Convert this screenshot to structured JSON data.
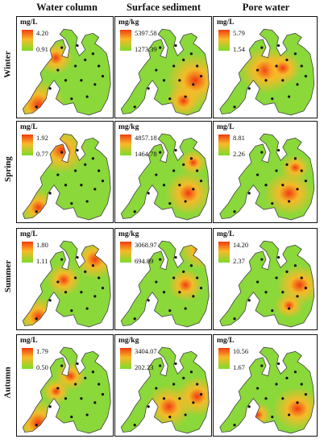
{
  "columns": [
    "Water column",
    "Surface sediment",
    "Pore water"
  ],
  "rows": [
    "Winter",
    "Spring",
    "Summer",
    "Autumn"
  ],
  "colors": {
    "low": "#7cdc2a",
    "mid": "#f9b928",
    "high": "#f23a10",
    "base": "#8ad83a"
  },
  "panels": [
    [
      {
        "unit": "mg/L",
        "max": "4.20",
        "min": "0.91",
        "hotspots": [
          [
            0.22,
            0.86,
            0.28
          ],
          [
            0.4,
            0.4,
            0.18
          ]
        ]
      },
      {
        "unit": "mg/kg",
        "max": "5397.58",
        "min": "1273.39",
        "hotspots": [
          [
            0.82,
            0.62,
            0.3
          ],
          [
            0.7,
            0.82,
            0.18
          ]
        ]
      },
      {
        "unit": "mg/L",
        "max": "5.79",
        "min": "1.54",
        "hotspots": [
          [
            0.5,
            0.52,
            0.26
          ],
          [
            0.66,
            0.5,
            0.18
          ]
        ]
      }
    ],
    [
      {
        "unit": "mg/L",
        "max": "1.92",
        "min": "0.77",
        "hotspots": [
          [
            0.46,
            0.28,
            0.26
          ],
          [
            0.22,
            0.84,
            0.2
          ]
        ]
      },
      {
        "unit": "mg/kg",
        "max": "4857.18",
        "min": "1464.78",
        "hotspots": [
          [
            0.75,
            0.7,
            0.24
          ],
          [
            0.8,
            0.4,
            0.14
          ]
        ]
      },
      {
        "unit": "mg/L",
        "max": "8.81",
        "min": "2.26",
        "hotspots": [
          [
            0.72,
            0.7,
            0.24
          ],
          [
            0.78,
            0.45,
            0.14
          ]
        ]
      }
    ],
    [
      {
        "unit": "mg/L",
        "max": "1.80",
        "min": "1.11",
        "hotspots": [
          [
            0.8,
            0.3,
            0.22
          ],
          [
            0.22,
            0.86,
            0.22
          ],
          [
            0.48,
            0.5,
            0.18
          ]
        ]
      },
      {
        "unit": "mg/kg",
        "max": "3068.97",
        "min": "694.89",
        "hotspots": [
          [
            0.88,
            0.2,
            0.22
          ],
          [
            0.72,
            0.55,
            0.18
          ]
        ]
      },
      {
        "unit": "mg/L",
        "max": "14.20",
        "min": "2.37",
        "hotspots": [
          [
            0.82,
            0.55,
            0.22
          ],
          [
            0.72,
            0.75,
            0.14
          ]
        ]
      }
    ],
    [
      {
        "unit": "mg/L",
        "max": "1.79",
        "min": "0.50",
        "hotspots": [
          [
            0.22,
            0.86,
            0.26
          ],
          [
            0.55,
            0.4,
            0.16
          ],
          [
            0.4,
            0.55,
            0.14
          ]
        ]
      },
      {
        "unit": "mg/kg",
        "max": "3404.07",
        "min": "202.23",
        "hotspots": [
          [
            0.55,
            0.7,
            0.24
          ],
          [
            0.84,
            0.6,
            0.22
          ]
        ]
      },
      {
        "unit": "mg/L",
        "max": "10.56",
        "min": "1.67",
        "hotspots": [
          [
            0.8,
            0.72,
            0.24
          ],
          [
            0.42,
            0.78,
            0.14
          ]
        ]
      }
    ]
  ]
}
